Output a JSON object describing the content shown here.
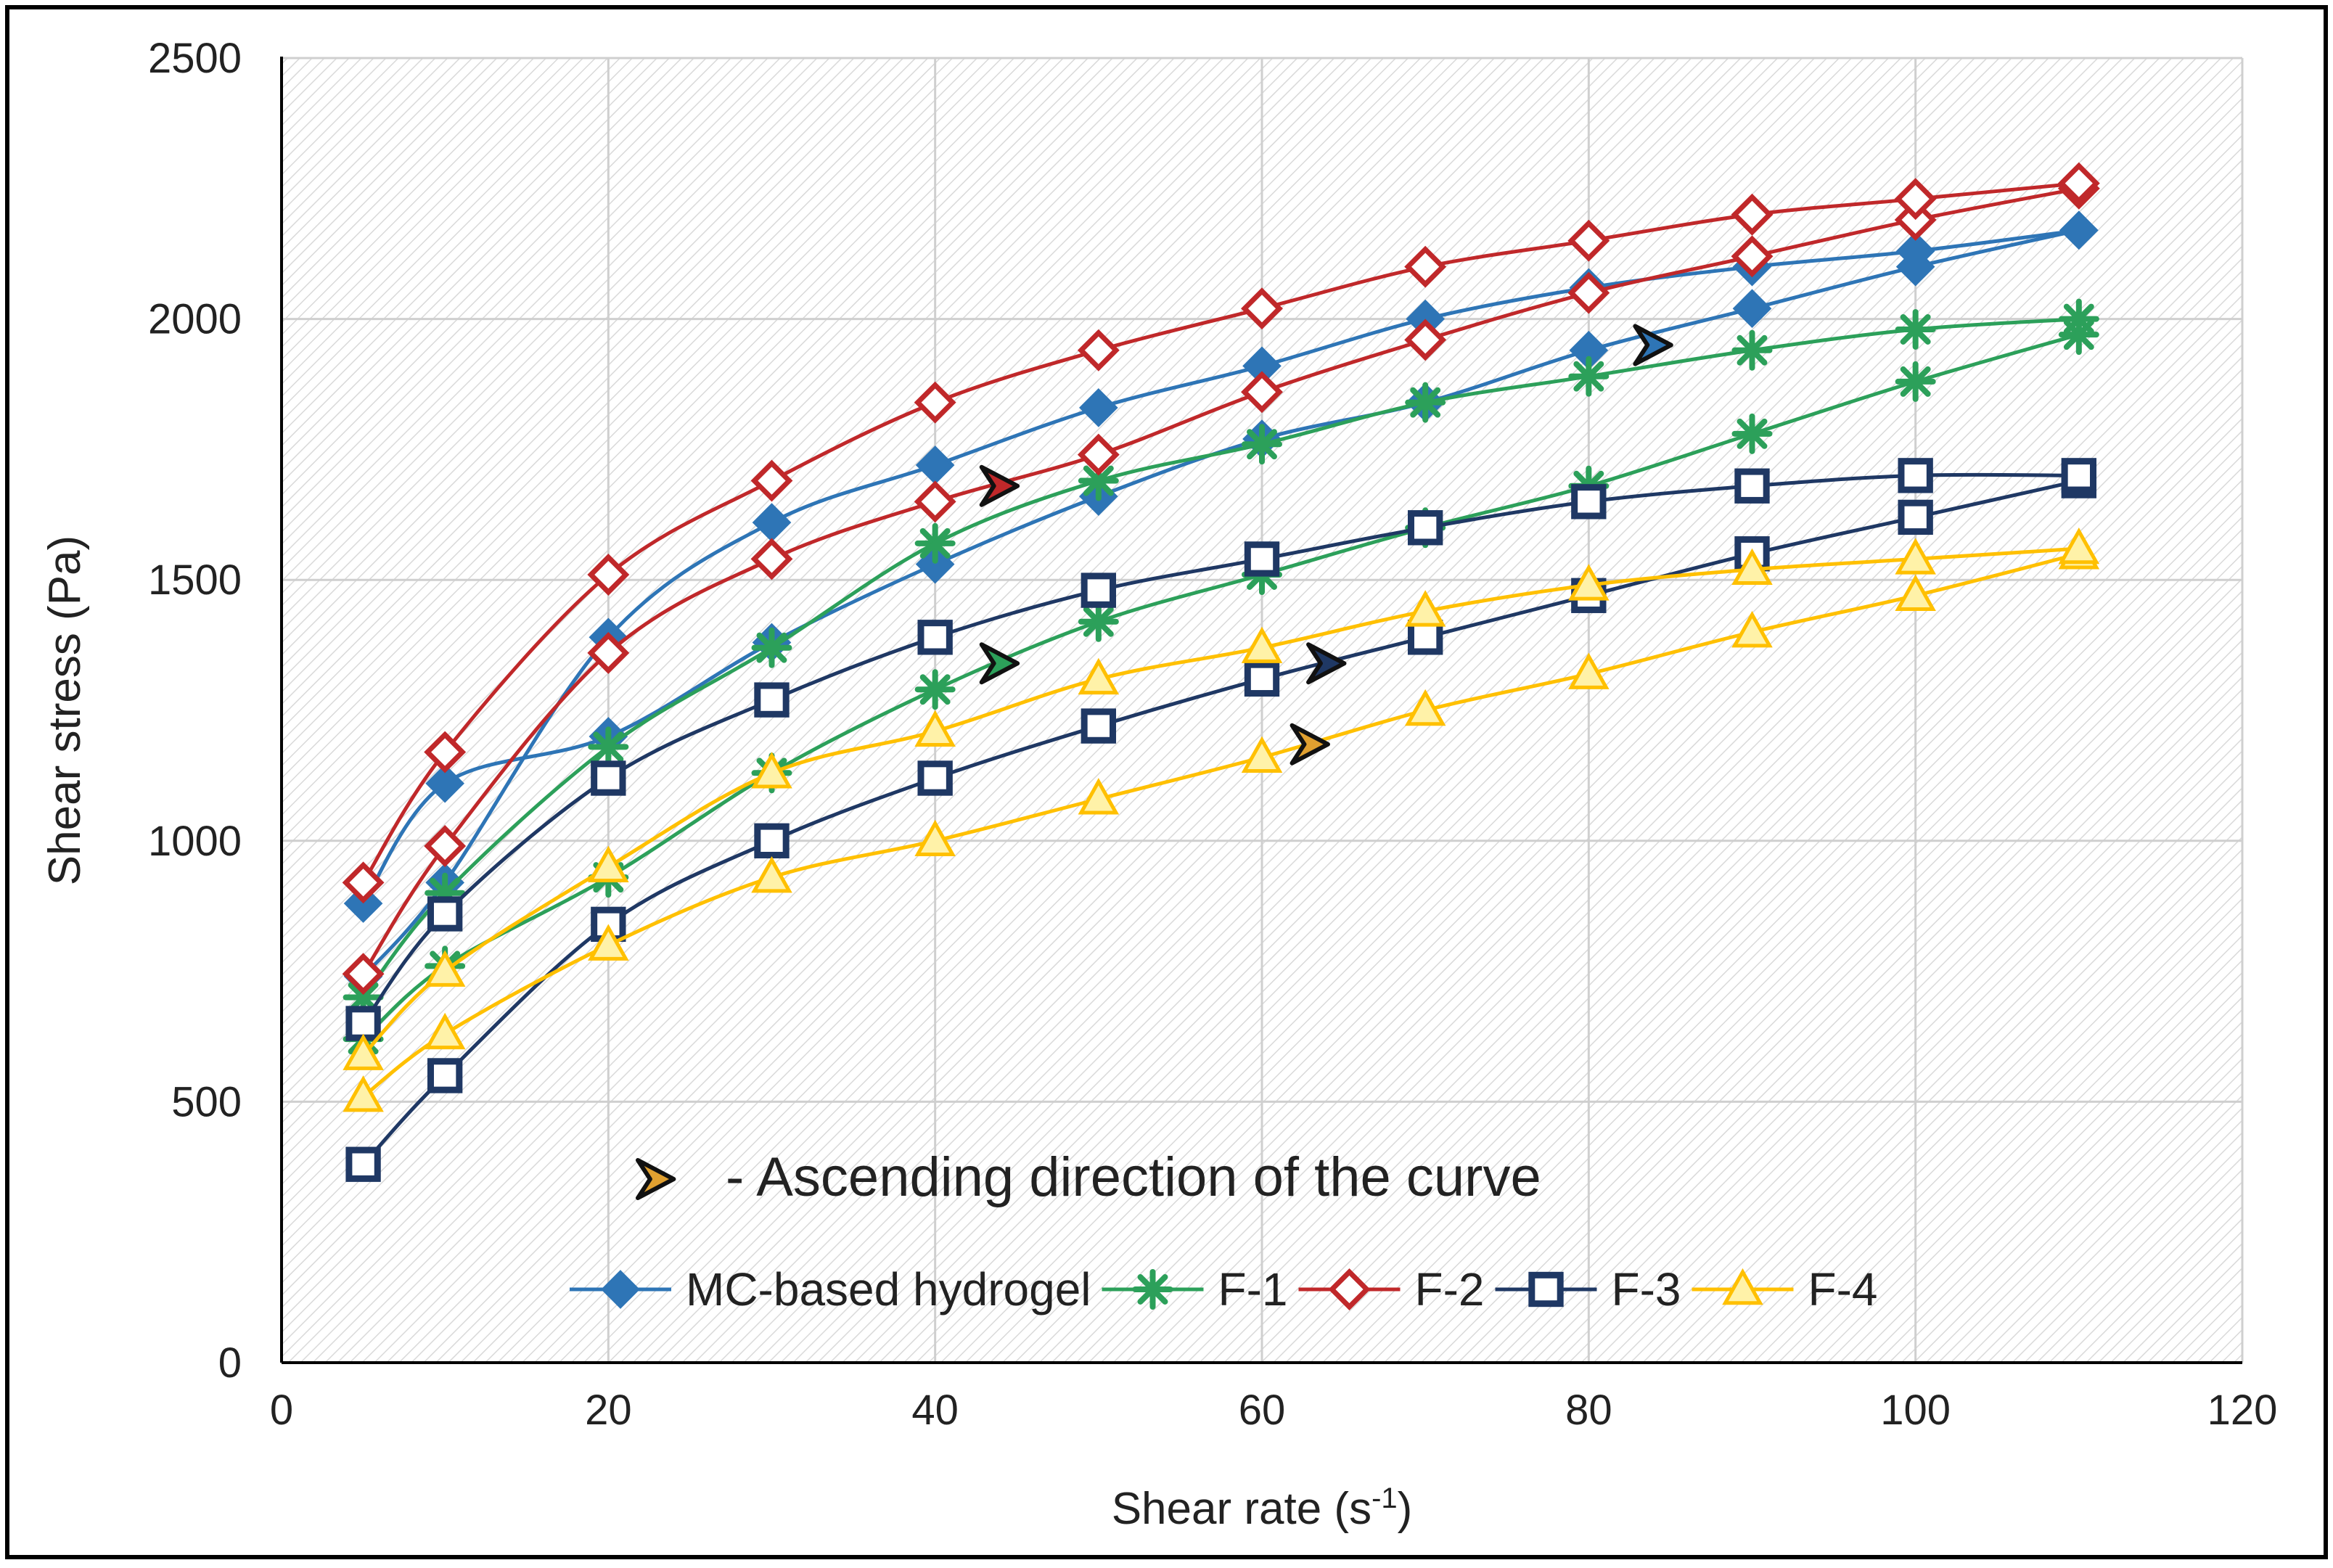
{
  "chart_data": {
    "type": "line",
    "title": "",
    "xlabel": "Shear rate (s",
    "xlabel_sup": "-1",
    "xlabel_suffix": ")",
    "ylabel": "Shear stress (Pa)",
    "xlim": [
      0,
      120
    ],
    "ylim": [
      0,
      2500
    ],
    "x_ticks": [
      "0",
      "20",
      "40",
      "60",
      "80",
      "100",
      "120"
    ],
    "y_ticks": [
      "0",
      "500",
      "1000",
      "1500",
      "2000",
      "2500"
    ],
    "grid": true,
    "legend_position": "bottom-inside",
    "annotation": "- Ascending direction of the curve",
    "series": [
      {
        "name": "MC-based hydrogel",
        "color": "#2e75b6",
        "marker": "diamond",
        "marker_fill": "#2e75b6",
        "ascending": {
          "x": [
            5,
            10,
            20,
            30,
            40,
            50,
            60,
            70,
            80,
            90,
            100,
            110
          ],
          "y": [
            880,
            1110,
            1200,
            1380,
            1530,
            1660,
            1770,
            1840,
            1940,
            2020,
            2100,
            2170
          ]
        },
        "descending": {
          "x": [
            110,
            100,
            90,
            80,
            70,
            60,
            50,
            40,
            30,
            20,
            10,
            5
          ],
          "y": [
            2170,
            2130,
            2100,
            2060,
            2000,
            1910,
            1830,
            1720,
            1610,
            1390,
            920,
            740
          ]
        },
        "arrow_color": "#2e75b6",
        "arrow_at": [
          84,
          1950
        ]
      },
      {
        "name": "F-1",
        "color": "#2ca05a",
        "marker": "asterisk",
        "marker_fill": "#2ca05a",
        "ascending": {
          "x": [
            5,
            10,
            20,
            30,
            40,
            50,
            60,
            70,
            80,
            90,
            100,
            110
          ],
          "y": [
            620,
            760,
            930,
            1130,
            1290,
            1420,
            1510,
            1600,
            1680,
            1780,
            1880,
            1970
          ]
        },
        "descending": {
          "x": [
            110,
            100,
            90,
            80,
            70,
            60,
            50,
            40,
            30,
            20,
            10,
            5
          ],
          "y": [
            2000,
            1980,
            1940,
            1890,
            1840,
            1760,
            1690,
            1570,
            1370,
            1180,
            900,
            700
          ]
        },
        "arrow_color": "#2ca05a",
        "arrow_at": [
          44,
          1340
        ]
      },
      {
        "name": "F-2",
        "color": "#c0282a",
        "marker": "diamond-open",
        "marker_fill": "#ffffff",
        "ascending": {
          "x": [
            5,
            10,
            20,
            30,
            40,
            50,
            60,
            70,
            80,
            90,
            100,
            110
          ],
          "y": [
            745,
            990,
            1360,
            1540,
            1650,
            1740,
            1860,
            1960,
            2050,
            2120,
            2190,
            2250
          ]
        },
        "descending": {
          "x": [
            110,
            100,
            90,
            80,
            70,
            60,
            50,
            40,
            30,
            20,
            10,
            5
          ],
          "y": [
            2260,
            2230,
            2200,
            2150,
            2100,
            2020,
            1940,
            1840,
            1690,
            1510,
            1170,
            920
          ]
        },
        "arrow_color": "#c0282a",
        "arrow_at": [
          44,
          1680
        ]
      },
      {
        "name": "F-3",
        "color": "#1f3864",
        "marker": "square-open",
        "marker_fill": "#ffffff",
        "ascending": {
          "x": [
            5,
            10,
            20,
            30,
            40,
            50,
            60,
            70,
            80,
            90,
            100,
            110
          ],
          "y": [
            380,
            550,
            840,
            1000,
            1120,
            1220,
            1310,
            1390,
            1470,
            1550,
            1620,
            1690
          ]
        },
        "descending": {
          "x": [
            110,
            100,
            90,
            80,
            70,
            60,
            50,
            40,
            30,
            20,
            10,
            5
          ],
          "y": [
            1700,
            1700,
            1680,
            1650,
            1600,
            1540,
            1480,
            1390,
            1270,
            1120,
            860,
            650
          ]
        },
        "arrow_color": "#1f3864",
        "arrow_at": [
          64,
          1340
        ]
      },
      {
        "name": "F-4",
        "color": "#ffc000",
        "marker": "triangle",
        "marker_fill": "#fff2a8",
        "ascending": {
          "x": [
            5,
            10,
            20,
            30,
            40,
            50,
            60,
            70,
            80,
            90,
            100,
            110
          ],
          "y": [
            510,
            630,
            800,
            930,
            1000,
            1080,
            1160,
            1250,
            1320,
            1400,
            1470,
            1550
          ]
        },
        "descending": {
          "x": [
            110,
            100,
            90,
            80,
            70,
            60,
            50,
            40,
            30,
            20,
            10,
            5
          ],
          "y": [
            1560,
            1540,
            1520,
            1490,
            1440,
            1370,
            1310,
            1210,
            1130,
            950,
            750,
            590
          ]
        },
        "arrow_color": "#e0a030",
        "arrow_at": [
          63,
          1185
        ]
      }
    ],
    "annotation_arrow_color": "#e0a030"
  }
}
